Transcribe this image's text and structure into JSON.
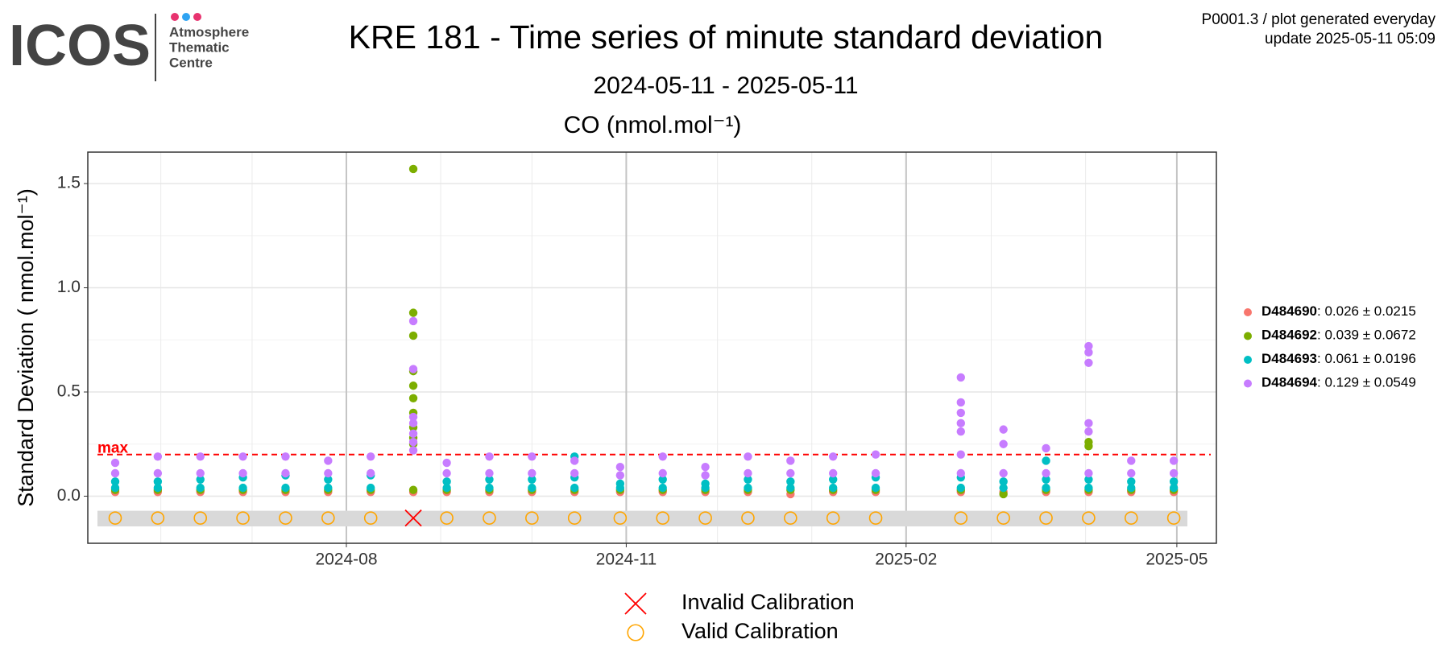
{
  "header": {
    "logo": "ICOS",
    "logo_lines": [
      "Atmosphere",
      "Thematic",
      "Centre"
    ],
    "info": [
      "P0001.3 / plot generated everyday",
      "update  2025-05-11 05:09"
    ]
  },
  "chart_data": {
    "type": "scatter",
    "title": "KRE 181 - Time series of minute standard deviation",
    "subtitle": "2024-05-11 - 2025-05-11",
    "panel_title": "CO (nmol.mol⁻¹)",
    "y_label": "Standard Deviation ( nmol.mol⁻¹)",
    "xlim": [
      "2024-05-08",
      "2025-05-14"
    ],
    "xticks": [
      {
        "value": "2024-08-01",
        "label": "2024-08"
      },
      {
        "value": "2024-11-01",
        "label": "2024-11"
      },
      {
        "value": "2025-02-01",
        "label": "2025-02"
      },
      {
        "value": "2025-05-01",
        "label": "2025-05"
      }
    ],
    "minor_xticks": [
      "2024-06-01",
      "2024-07-01",
      "2024-09-01",
      "2024-10-01",
      "2024-12-01",
      "2025-01-01",
      "2025-03-01",
      "2025-04-01"
    ],
    "ylim": [
      -0.226,
      1.651
    ],
    "yticks": [
      {
        "value": 0,
        "label": "0.0"
      },
      0.5,
      {
        "value": 1,
        "label": "1.0"
      },
      1.5
    ],
    "minor_yticks": [
      0.25,
      0.75,
      1.25
    ],
    "grid": true,
    "legend": "right",
    "threshold": {
      "label": "max",
      "value": 0.2,
      "color": "#ff0000"
    },
    "calibration_band": [
      -0.145,
      -0.07
    ],
    "calibration_y": -0.105,
    "calibrations": [
      {
        "name": "Invalid Calibration",
        "marker": "x",
        "color": "#ff0000",
        "x": [
          "2024-08-23"
        ]
      },
      {
        "name": "Valid Calibration",
        "marker": "o",
        "color": "#ffa500",
        "x": [
          "2024-05-17",
          "2024-05-31",
          "2024-06-14",
          "2024-06-28",
          "2024-07-12",
          "2024-07-26",
          "2024-08-09",
          "2024-09-03",
          "2024-09-17",
          "2024-10-01",
          "2024-10-15",
          "2024-10-30",
          "2024-11-13",
          "2024-11-27",
          "2024-12-11",
          "2024-12-25",
          "2025-01-08",
          "2025-01-22",
          "2025-02-19",
          "2025-03-05",
          "2025-03-19",
          "2025-04-02",
          "2025-04-16",
          "2025-04-30"
        ]
      }
    ],
    "series": [
      {
        "name": "D484690",
        "stats": ": 0.026 ± 0.0215",
        "color": "#f8766d",
        "x": [
          "2024-05-17",
          "2024-05-31",
          "2024-06-14",
          "2024-06-28",
          "2024-07-12",
          "2024-07-26",
          "2024-08-09",
          "2024-08-23",
          "2024-09-03",
          "2024-09-17",
          "2024-10-01",
          "2024-10-15",
          "2024-10-30",
          "2024-11-13",
          "2024-11-27",
          "2024-12-11",
          "2024-12-25",
          "2025-01-08",
          "2025-01-22",
          "2025-02-19",
          "2025-03-05",
          "2025-03-19",
          "2025-04-02",
          "2025-04-16",
          "2025-04-30"
        ],
        "values": [
          0.02,
          0.02,
          0.02,
          0.02,
          0.02,
          0.02,
          0.02,
          0.02,
          0.02,
          0.02,
          0.02,
          0.02,
          0.02,
          0.02,
          0.02,
          0.02,
          0.01,
          0.02,
          0.02,
          0.02,
          0.02,
          0.02,
          0.02,
          0.02,
          0.02
        ]
      },
      {
        "name": "D484692",
        "stats": ": 0.039 ± 0.0672",
        "color": "#7cae00",
        "x": [
          "2024-05-17",
          "2024-05-31",
          "2024-06-14",
          "2024-06-28",
          "2024-07-12",
          "2024-07-26",
          "2024-08-09",
          "2024-08-23",
          "2024-09-03",
          "2024-09-17",
          "2024-10-01",
          "2024-10-15",
          "2024-10-30",
          "2024-11-13",
          "2024-11-27",
          "2024-12-11",
          "2024-12-25",
          "2025-01-08",
          "2025-01-22",
          "2025-02-19",
          "2025-03-05",
          "2025-03-19",
          "2025-04-02",
          "2025-04-16",
          "2025-04-30",
          "2024-08-23",
          "2024-08-23",
          "2024-08-23",
          "2024-08-23",
          "2024-08-23",
          "2024-08-23",
          "2024-08-23",
          "2024-08-23",
          "2024-08-23",
          "2024-08-23",
          "2025-04-02",
          "2025-04-02"
        ],
        "values": [
          0.03,
          0.03,
          0.03,
          0.03,
          0.03,
          0.03,
          0.03,
          0.03,
          0.03,
          0.03,
          0.03,
          0.03,
          0.03,
          0.03,
          0.03,
          0.03,
          0.03,
          0.03,
          0.03,
          0.03,
          0.01,
          0.03,
          0.03,
          0.03,
          0.03,
          1.57,
          0.88,
          0.77,
          0.6,
          0.53,
          0.47,
          0.4,
          0.33,
          0.28,
          0.25,
          0.26,
          0.24
        ]
      },
      {
        "name": "D484693",
        "stats": ": 0.061 ± 0.0196",
        "color": "#00bfc4",
        "x": [
          "2024-05-17",
          "2024-05-31",
          "2024-06-14",
          "2024-06-28",
          "2024-07-12",
          "2024-07-26",
          "2024-08-09",
          "2024-09-03",
          "2024-09-17",
          "2024-10-01",
          "2024-10-15",
          "2024-10-30",
          "2024-11-13",
          "2024-11-27",
          "2024-12-11",
          "2024-12-25",
          "2025-01-08",
          "2025-01-22",
          "2025-02-19",
          "2025-03-05",
          "2025-03-19",
          "2025-04-02",
          "2025-04-16",
          "2025-04-30",
          "2024-05-17",
          "2024-05-31",
          "2024-06-14",
          "2024-06-28",
          "2024-07-12",
          "2024-07-26",
          "2024-08-09",
          "2024-09-03",
          "2024-09-17",
          "2024-10-01",
          "2024-10-15",
          "2024-10-30",
          "2024-11-13",
          "2024-11-27",
          "2024-12-11",
          "2024-12-25",
          "2025-01-08",
          "2025-01-22",
          "2025-02-19",
          "2025-03-05",
          "2025-03-19",
          "2025-04-02",
          "2025-04-16",
          "2025-04-30",
          "2024-10-15",
          "2025-03-19"
        ],
        "values": [
          0.04,
          0.04,
          0.04,
          0.04,
          0.04,
          0.04,
          0.04,
          0.04,
          0.04,
          0.04,
          0.04,
          0.04,
          0.04,
          0.04,
          0.04,
          0.04,
          0.04,
          0.04,
          0.04,
          0.04,
          0.04,
          0.04,
          0.04,
          0.04,
          0.07,
          0.07,
          0.08,
          0.09,
          0.1,
          0.08,
          0.1,
          0.07,
          0.08,
          0.08,
          0.09,
          0.06,
          0.08,
          0.06,
          0.08,
          0.07,
          0.08,
          0.09,
          0.09,
          0.07,
          0.08,
          0.08,
          0.07,
          0.07,
          0.19,
          0.17
        ]
      },
      {
        "name": "D484694",
        "stats": ": 0.129 ± 0.0549",
        "color": "#c77cff",
        "x": [
          "2024-05-17",
          "2024-05-31",
          "2024-06-14",
          "2024-06-28",
          "2024-07-12",
          "2024-07-26",
          "2024-08-09",
          "2024-08-23",
          "2024-09-03",
          "2024-09-17",
          "2024-10-01",
          "2024-10-15",
          "2024-10-30",
          "2024-11-13",
          "2024-11-27",
          "2024-12-11",
          "2024-12-25",
          "2025-01-08",
          "2025-01-22",
          "2025-02-19",
          "2025-03-05",
          "2025-03-19",
          "2025-04-02",
          "2025-04-16",
          "2025-04-30",
          "2024-05-17",
          "2024-05-31",
          "2024-06-14",
          "2024-06-28",
          "2024-07-12",
          "2024-07-26",
          "2024-08-09",
          "2024-08-23",
          "2024-09-03",
          "2024-09-17",
          "2024-10-01",
          "2024-10-15",
          "2024-10-30",
          "2024-11-13",
          "2024-11-27",
          "2024-12-11",
          "2024-12-25",
          "2025-01-08",
          "2025-01-22",
          "2025-02-19",
          "2025-03-05",
          "2025-03-19",
          "2025-04-02",
          "2025-04-16",
          "2025-04-30",
          "2024-08-23",
          "2024-08-23",
          "2024-08-23",
          "2024-08-23",
          "2024-08-23",
          "2025-02-19",
          "2025-02-19",
          "2025-02-19",
          "2025-02-19",
          "2025-02-19",
          "2025-03-05",
          "2025-04-02",
          "2025-04-02",
          "2025-04-02",
          "2025-04-02"
        ],
        "values": [
          0.11,
          0.11,
          0.11,
          0.11,
          0.11,
          0.11,
          0.11,
          0.22,
          0.11,
          0.11,
          0.11,
          0.11,
          0.1,
          0.11,
          0.1,
          0.11,
          0.11,
          0.11,
          0.11,
          0.11,
          0.11,
          0.11,
          0.11,
          0.11,
          0.11,
          0.16,
          0.19,
          0.19,
          0.19,
          0.19,
          0.17,
          0.19,
          0.84,
          0.16,
          0.19,
          0.19,
          0.17,
          0.14,
          0.19,
          0.14,
          0.19,
          0.17,
          0.19,
          0.2,
          0.57,
          0.32,
          0.23,
          0.72,
          0.17,
          0.17,
          0.61,
          0.38,
          0.35,
          0.3,
          0.26,
          0.45,
          0.4,
          0.35,
          0.31,
          0.2,
          0.25,
          0.69,
          0.64,
          0.35,
          0.31
        ]
      }
    ]
  }
}
